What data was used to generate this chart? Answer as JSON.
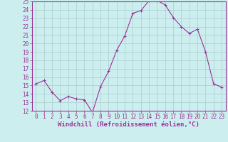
{
  "x": [
    0,
    1,
    2,
    3,
    4,
    5,
    6,
    7,
    8,
    9,
    10,
    11,
    12,
    13,
    14,
    15,
    16,
    17,
    18,
    19,
    20,
    21,
    22,
    23
  ],
  "y": [
    15.2,
    15.6,
    14.2,
    13.2,
    13.7,
    13.4,
    13.3,
    11.8,
    14.9,
    16.7,
    19.2,
    20.9,
    23.6,
    23.9,
    25.1,
    25.1,
    24.6,
    23.1,
    22.0,
    21.2,
    21.7,
    19.0,
    15.2,
    14.8
  ],
  "line_color": "#993399",
  "marker": "+",
  "bg_color": "#cceeee",
  "grid_color": "#aacccc",
  "xlabel": "Windchill (Refroidissement éolien,°C)",
  "ylim": [
    12,
    25
  ],
  "xlim": [
    -0.5,
    23.5
  ],
  "yticks": [
    12,
    13,
    14,
    15,
    16,
    17,
    18,
    19,
    20,
    21,
    22,
    23,
    24,
    25
  ],
  "xticks": [
    0,
    1,
    2,
    3,
    4,
    5,
    6,
    7,
    8,
    9,
    10,
    11,
    12,
    13,
    14,
    15,
    16,
    17,
    18,
    19,
    20,
    21,
    22,
    23
  ],
  "tick_label_fontsize": 5.5,
  "xlabel_fontsize": 6.5,
  "label_color": "#993399",
  "spine_color": "#993399"
}
